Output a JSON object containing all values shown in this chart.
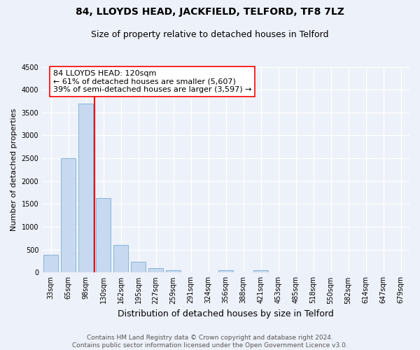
{
  "title": "84, LLOYDS HEAD, JACKFIELD, TELFORD, TF8 7LZ",
  "subtitle": "Size of property relative to detached houses in Telford",
  "xlabel": "Distribution of detached houses by size in Telford",
  "ylabel": "Number of detached properties",
  "bar_labels": [
    "33sqm",
    "65sqm",
    "98sqm",
    "130sqm",
    "162sqm",
    "195sqm",
    "227sqm",
    "259sqm",
    "291sqm",
    "324sqm",
    "356sqm",
    "388sqm",
    "421sqm",
    "453sqm",
    "485sqm",
    "518sqm",
    "550sqm",
    "582sqm",
    "614sqm",
    "647sqm",
    "679sqm"
  ],
  "bar_values": [
    380,
    2500,
    3700,
    1625,
    600,
    240,
    100,
    55,
    0,
    0,
    55,
    0,
    55,
    0,
    0,
    0,
    0,
    0,
    0,
    0,
    0
  ],
  "bar_color": "#c6d9f0",
  "bar_edge_color": "#7aadd4",
  "vline_index": 2.5,
  "vline_color": "red",
  "annotation_line1": "84 LLOYDS HEAD: 120sqm",
  "annotation_line2": "← 61% of detached houses are smaller (5,607)",
  "annotation_line3": "39% of semi-detached houses are larger (3,597) →",
  "annotation_box_color": "white",
  "annotation_box_edge": "red",
  "ylim": [
    0,
    4500
  ],
  "yticks": [
    0,
    500,
    1000,
    1500,
    2000,
    2500,
    3000,
    3500,
    4000,
    4500
  ],
  "footer_line1": "Contains HM Land Registry data © Crown copyright and database right 2024.",
  "footer_line2": "Contains public sector information licensed under the Open Government Licence v3.0.",
  "bg_color": "#edf1f9",
  "grid_color": "white",
  "title_fontsize": 10,
  "subtitle_fontsize": 9,
  "xlabel_fontsize": 9,
  "ylabel_fontsize": 8,
  "tick_fontsize": 7,
  "annotation_fontsize": 8,
  "footer_fontsize": 6.5
}
